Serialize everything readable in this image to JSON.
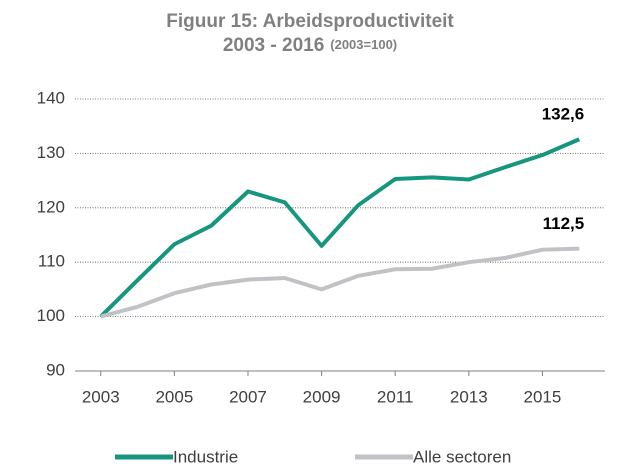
{
  "chart_data": {
    "type": "line",
    "title": "Figuur 15: Arbeidsproductiviteit",
    "subtitle": "2003 - 2016",
    "subtitle_note": "(2003=100)",
    "x": [
      2003,
      2004,
      2005,
      2006,
      2007,
      2008,
      2009,
      2010,
      2011,
      2012,
      2013,
      2014,
      2015,
      2016
    ],
    "xlim": [
      2002.3,
      2016.7
    ],
    "xticks": [
      2003,
      2005,
      2007,
      2009,
      2011,
      2013,
      2015
    ],
    "ylim": [
      90,
      140
    ],
    "yticks": [
      90,
      100,
      110,
      120,
      130,
      140
    ],
    "grid": true,
    "legend": "bottom",
    "series": [
      {
        "name": "Industrie",
        "color": "#16967f",
        "values": [
          100,
          106.7,
          113.3,
          116.7,
          123,
          121,
          113,
          120.5,
          125.3,
          125.6,
          125.2,
          127.5,
          129.7,
          132.6
        ],
        "value_labels": [
          null,
          null,
          null,
          null,
          null,
          null,
          null,
          null,
          null,
          null,
          null,
          null,
          null,
          "132,6"
        ]
      },
      {
        "name": "Alle sectoren",
        "color": "#c0c2c5",
        "values": [
          100,
          101.8,
          104.3,
          105.9,
          106.8,
          107.1,
          105,
          107.5,
          108.7,
          108.8,
          110,
          110.8,
          112.3,
          112.5
        ],
        "value_labels": [
          null,
          null,
          null,
          null,
          null,
          null,
          null,
          null,
          null,
          null,
          null,
          null,
          null,
          "112,5"
        ]
      }
    ]
  }
}
